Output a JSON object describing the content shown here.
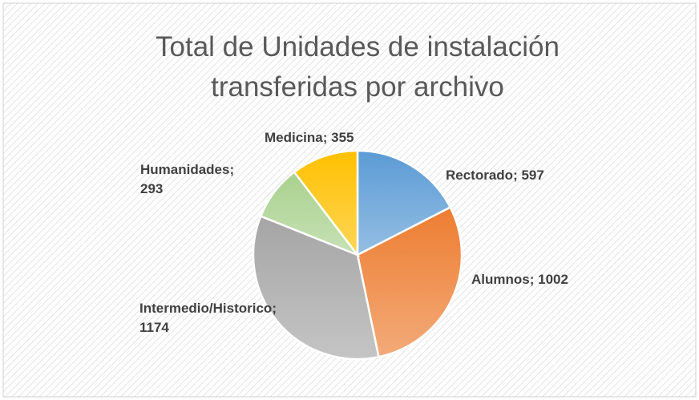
{
  "chart_data": {
    "type": "pie",
    "title": "Total de Unidades de instalación transferidas por archivo",
    "categories": [
      "Rectorado",
      "Alumnos",
      "Intermedio/Historico",
      "Humanidades",
      "Medicina"
    ],
    "values": [
      597,
      1002,
      1174,
      293,
      355
    ],
    "colors": [
      "#5b9bd5",
      "#ed7d31",
      "#a5a5a5",
      "#a9d18e",
      "#ffc000"
    ]
  }
}
